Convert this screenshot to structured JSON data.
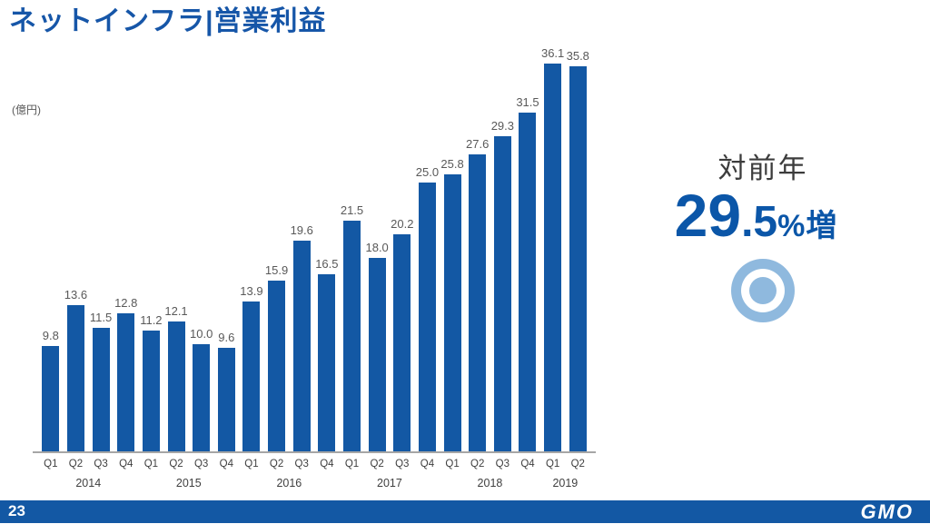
{
  "slide": {
    "title": "ネットインフラ|営業利益",
    "unit_label": "(億円)",
    "footer": {
      "page_number": "23",
      "logo": "GMO"
    }
  },
  "highlight": {
    "label": "対前年",
    "value_main": "29",
    "value_decimal": ".5",
    "value_suffix": "%増",
    "icon": "bullseye-icon"
  },
  "colors": {
    "title_blue": "#1656A8",
    "bar_blue": "#1358A4",
    "accent_blue": "#0B56A8",
    "light_blue": "#8FB9DE",
    "footer_blue": "#1358A4",
    "text_gray": "#595959",
    "axis_gray": "#A6A6A6",
    "highlight_label_gray": "#3C3C3C"
  },
  "chart_data": {
    "type": "bar",
    "title": "ネットインフラ|営業利益",
    "ylabel": "(億円)",
    "categories": [
      "Q1",
      "Q2",
      "Q3",
      "Q4",
      "Q1",
      "Q2",
      "Q3",
      "Q4",
      "Q1",
      "Q2",
      "Q3",
      "Q4",
      "Q1",
      "Q2",
      "Q3",
      "Q4",
      "Q1",
      "Q2",
      "Q3",
      "Q4",
      "Q1",
      "Q2"
    ],
    "year_groups": [
      {
        "label": "2014",
        "span": 4
      },
      {
        "label": "2015",
        "span": 4
      },
      {
        "label": "2016",
        "span": 4
      },
      {
        "label": "2017",
        "span": 4
      },
      {
        "label": "2018",
        "span": 4
      },
      {
        "label": "2019",
        "span": 2
      }
    ],
    "values": [
      9.8,
      13.6,
      11.5,
      12.8,
      11.2,
      12.1,
      10.0,
      9.6,
      13.9,
      15.9,
      19.6,
      16.5,
      21.5,
      18.0,
      20.2,
      25.0,
      25.8,
      27.6,
      29.3,
      31.5,
      36.1,
      35.8
    ],
    "ylim": [
      0,
      37
    ],
    "grid": false,
    "legend": false,
    "bar_color": "#1358A4",
    "value_label_color": "#595959",
    "axis_color": "#A6A6A6"
  }
}
